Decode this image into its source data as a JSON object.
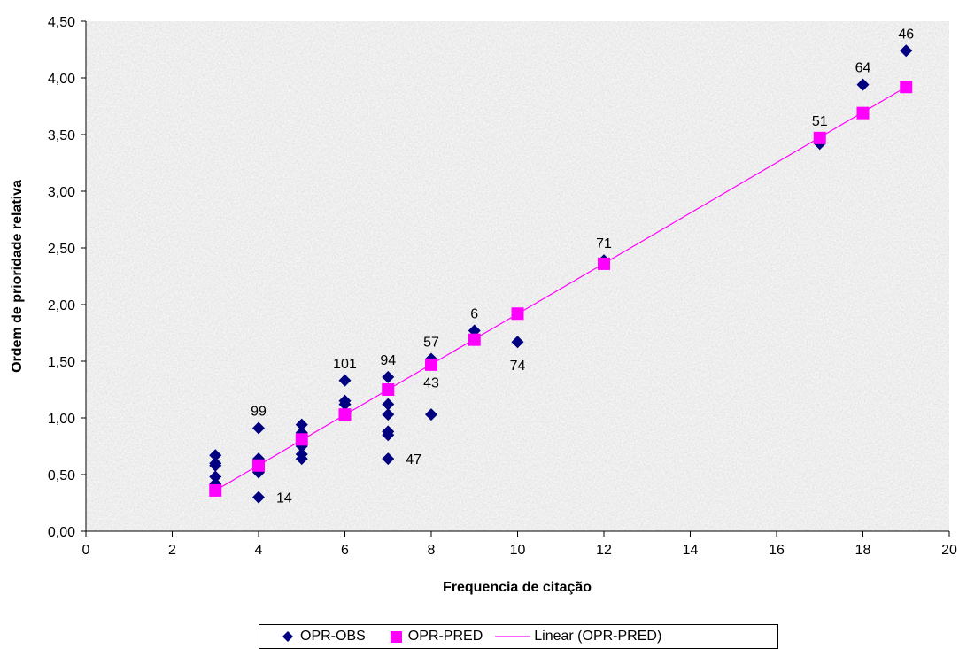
{
  "chart_data": {
    "type": "scatter",
    "title": "",
    "xlabel": "Frequencia de citação",
    "ylabel": "Ordem de prioridade relativa",
    "xlim": [
      0,
      20
    ],
    "ylim": [
      0,
      4.5
    ],
    "x_ticks": [
      "0",
      "2",
      "4",
      "6",
      "8",
      "10",
      "12",
      "14",
      "16",
      "18",
      "20"
    ],
    "y_ticks": [
      "0,00",
      "0,50",
      "1,00",
      "1,50",
      "2,00",
      "2,50",
      "3,00",
      "3,50",
      "4,00",
      "4,50"
    ],
    "grid": false,
    "legend_position": "bottom",
    "series": [
      {
        "name": "OPR-OBS",
        "marker": "diamond",
        "color": "#000080",
        "points": [
          [
            3,
            0.67
          ],
          [
            3,
            0.6
          ],
          [
            3,
            0.58
          ],
          [
            3,
            0.48
          ],
          [
            3,
            0.42
          ],
          [
            4,
            0.91
          ],
          [
            4,
            0.64
          ],
          [
            4,
            0.52
          ],
          [
            4,
            0.3
          ],
          [
            5,
            0.94
          ],
          [
            5,
            0.87
          ],
          [
            5,
            0.79
          ],
          [
            5,
            0.75
          ],
          [
            5,
            0.68
          ],
          [
            5,
            0.64
          ],
          [
            6,
            1.33
          ],
          [
            6,
            1.15
          ],
          [
            6,
            1.12
          ],
          [
            6,
            1.05
          ],
          [
            7,
            1.36
          ],
          [
            7,
            1.12
          ],
          [
            7,
            1.03
          ],
          [
            7,
            0.88
          ],
          [
            7,
            0.85
          ],
          [
            7,
            0.64
          ],
          [
            8,
            1.52
          ],
          [
            8,
            1.03
          ],
          [
            9,
            1.77
          ],
          [
            10,
            1.67
          ],
          [
            12,
            2.39
          ],
          [
            17,
            3.42
          ],
          [
            18,
            3.94
          ],
          [
            19,
            4.24
          ]
        ]
      },
      {
        "name": "OPR-PRED",
        "marker": "square",
        "color": "#FF00FF",
        "points": [
          [
            3,
            0.36
          ],
          [
            4,
            0.58
          ],
          [
            5,
            0.81
          ],
          [
            6,
            1.03
          ],
          [
            7,
            1.25
          ],
          [
            8,
            1.47
          ],
          [
            9,
            1.69
          ],
          [
            10,
            1.92
          ],
          [
            12,
            2.36
          ],
          [
            17,
            3.47
          ],
          [
            18,
            3.69
          ],
          [
            19,
            3.92
          ]
        ]
      },
      {
        "name": "Linear (OPR-PRED)",
        "type": "line",
        "color": "#FF00FF",
        "x": [
          3,
          19
        ],
        "y": [
          0.36,
          3.92
        ]
      }
    ],
    "annotations": [
      {
        "text": "99",
        "x": 4,
        "y": 0.91,
        "pos": "above"
      },
      {
        "text": "14",
        "x": 4,
        "y": 0.3,
        "pos": "right"
      },
      {
        "text": "101",
        "x": 6,
        "y": 1.33,
        "pos": "above"
      },
      {
        "text": "94",
        "x": 7,
        "y": 1.36,
        "pos": "above"
      },
      {
        "text": "47",
        "x": 7,
        "y": 0.64,
        "pos": "right"
      },
      {
        "text": "43",
        "x": 8,
        "y": 1.52,
        "pos": "below"
      },
      {
        "text": "57",
        "x": 8,
        "y": 1.52,
        "pos": "above"
      },
      {
        "text": "6",
        "x": 9,
        "y": 1.77,
        "pos": "above"
      },
      {
        "text": "74",
        "x": 10,
        "y": 1.67,
        "pos": "below"
      },
      {
        "text": "71",
        "x": 12,
        "y": 2.39,
        "pos": "above"
      },
      {
        "text": "51",
        "x": 17,
        "y": 3.47,
        "pos": "above"
      },
      {
        "text": "64",
        "x": 18,
        "y": 3.94,
        "pos": "above"
      },
      {
        "text": "46",
        "x": 19,
        "y": 4.24,
        "pos": "above"
      }
    ]
  }
}
